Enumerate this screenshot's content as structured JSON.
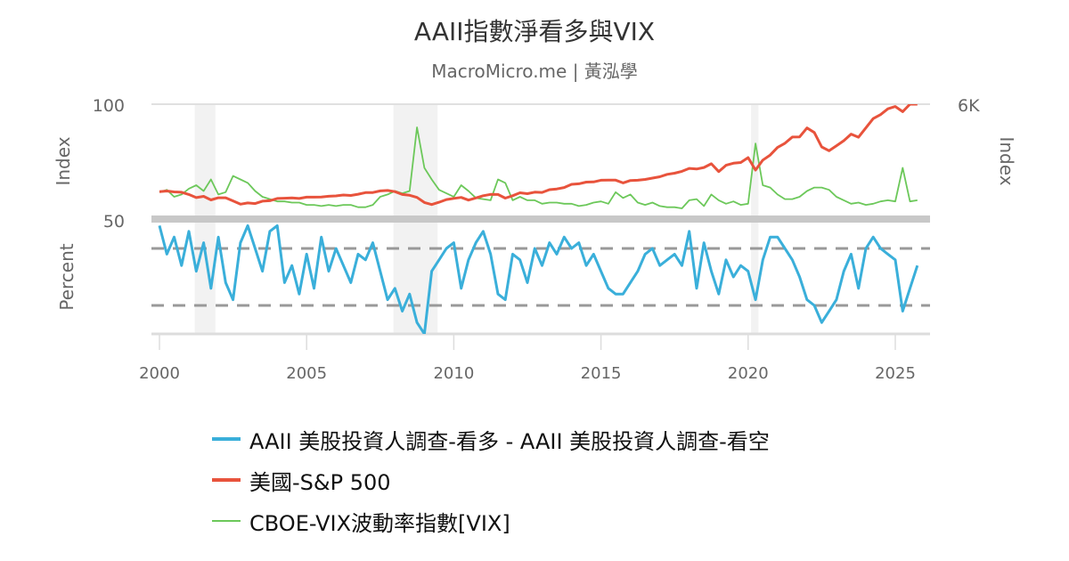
{
  "title": "AAII指數淨看多與VIX",
  "subtitle": "MacroMicro.me | 黃泓學",
  "chart_data": [
    {
      "type": "line",
      "panel": "upper",
      "x_start": 2000,
      "x_step": 0.25,
      "xlim": [
        2000,
        2026
      ],
      "xticks": [
        "2000",
        "2005",
        "2010",
        "2015",
        "2020",
        "2025"
      ],
      "left_axis": {
        "label": "Index",
        "ylim": [
          0,
          100
        ],
        "tick_labels": [
          "100"
        ]
      },
      "right_axis": {
        "label": "Index",
        "ylim": [
          0,
          6000
        ],
        "tick_labels": [
          "6K"
        ]
      },
      "recession_bands": [
        [
          2001.2,
          2001.9
        ],
        [
          2007.95,
          2009.45
        ],
        [
          2020.1,
          2020.35
        ]
      ],
      "series": [
        {
          "name": "美國-S&P 500",
          "axis": "right",
          "color": "#e8533c",
          "values": [
            1469,
            1499,
            1455,
            1436,
            1320,
            1160,
            1224,
            1040,
            1148,
            1147,
            989,
            815,
            880,
            848,
            975,
            996,
            1111,
            1126,
            1140,
            1114,
            1181,
            1180,
            1191,
            1228,
            1248,
            1294,
            1270,
            1335,
            1418,
            1420,
            1503,
            1526,
            1468,
            1322,
            1280,
            1166,
            903,
            797,
            919,
            1057,
            1115,
            1169,
            1031,
            1141,
            1257,
            1325,
            1320,
            1131,
            1257,
            1408,
            1362,
            1440,
            1426,
            1569,
            1606,
            1681,
            1848,
            1872,
            1960,
            1972,
            2058,
            2067,
            2063,
            1920,
            2043,
            2059,
            2098,
            2168,
            2238,
            2362,
            2423,
            2519,
            2673,
            2640,
            2718,
            2913,
            2506,
            2834,
            2941,
            2976,
            3230,
            2585,
            3100,
            3363,
            3756,
            3973,
            4297,
            4307,
            4766,
            4530,
            3785,
            3585,
            3839,
            4109,
            4450,
            4288,
            4770,
            5254,
            5460,
            5762,
            5881,
            5611,
            6000,
            6000
          ]
        },
        {
          "name": "CBOE-VIX波動率指數[VIX]",
          "axis": "left",
          "color": "#6cc85a",
          "values": [
            24,
            26,
            20,
            22,
            27,
            30,
            25,
            35,
            22,
            24,
            38,
            35,
            32,
            25,
            20,
            18,
            16,
            16,
            15,
            15,
            13,
            13,
            12,
            13,
            12,
            13,
            13,
            11,
            11,
            13,
            20,
            22,
            25,
            23,
            25,
            80,
            45,
            35,
            26,
            23,
            20,
            30,
            25,
            19,
            18,
            17,
            35,
            32,
            17,
            20,
            17,
            17,
            14,
            15,
            15,
            14,
            14,
            12,
            13,
            15,
            16,
            14,
            24,
            19,
            22,
            15,
            13,
            15,
            12,
            11,
            11,
            10,
            17,
            18,
            12,
            22,
            17,
            14,
            16,
            13,
            14,
            66,
            30,
            28,
            22,
            18,
            18,
            20,
            25,
            28,
            28,
            26,
            20,
            17,
            14,
            15,
            13,
            14,
            16,
            17,
            16,
            45,
            16,
            17
          ]
        }
      ]
    },
    {
      "type": "line",
      "panel": "lower",
      "x_start": 2000,
      "x_step": 0.25,
      "left_axis": {
        "label": "Percent",
        "ylim": [
          -50,
          50
        ],
        "tick_labels": [
          "50"
        ]
      },
      "reference_lines": [
        25,
        -25
      ],
      "series": [
        {
          "name": "AAII 美股投資人調查-看多 - AAII 美股投資人調查-看空",
          "axis": "left",
          "color": "#3aafda",
          "values": [
            45,
            20,
            35,
            10,
            40,
            5,
            30,
            -10,
            35,
            -5,
            -20,
            30,
            45,
            25,
            5,
            40,
            45,
            -5,
            10,
            -15,
            20,
            -10,
            35,
            5,
            25,
            10,
            -5,
            20,
            15,
            30,
            5,
            -20,
            -10,
            -30,
            -15,
            -40,
            -50,
            5,
            15,
            25,
            30,
            -10,
            15,
            30,
            40,
            20,
            -15,
            -20,
            20,
            15,
            -5,
            25,
            10,
            30,
            20,
            35,
            25,
            30,
            10,
            20,
            5,
            -10,
            -15,
            -15,
            -5,
            5,
            20,
            25,
            10,
            15,
            20,
            10,
            40,
            -10,
            30,
            5,
            -15,
            15,
            0,
            10,
            5,
            -20,
            15,
            35,
            35,
            25,
            15,
            0,
            -20,
            -25,
            -40,
            -30,
            -20,
            5,
            20,
            -10,
            25,
            35,
            25,
            20,
            15,
            -30,
            -10,
            10
          ]
        }
      ]
    }
  ],
  "legend": [
    {
      "label": "AAII 美股投資人調查-看多 - AAII 美股投資人調查-看空",
      "color": "#3aafda"
    },
    {
      "label": "美國-S&P 500",
      "color": "#e8533c"
    },
    {
      "label": "CBOE-VIX波動率指數[VIX]",
      "color": "#6cc85a"
    }
  ]
}
